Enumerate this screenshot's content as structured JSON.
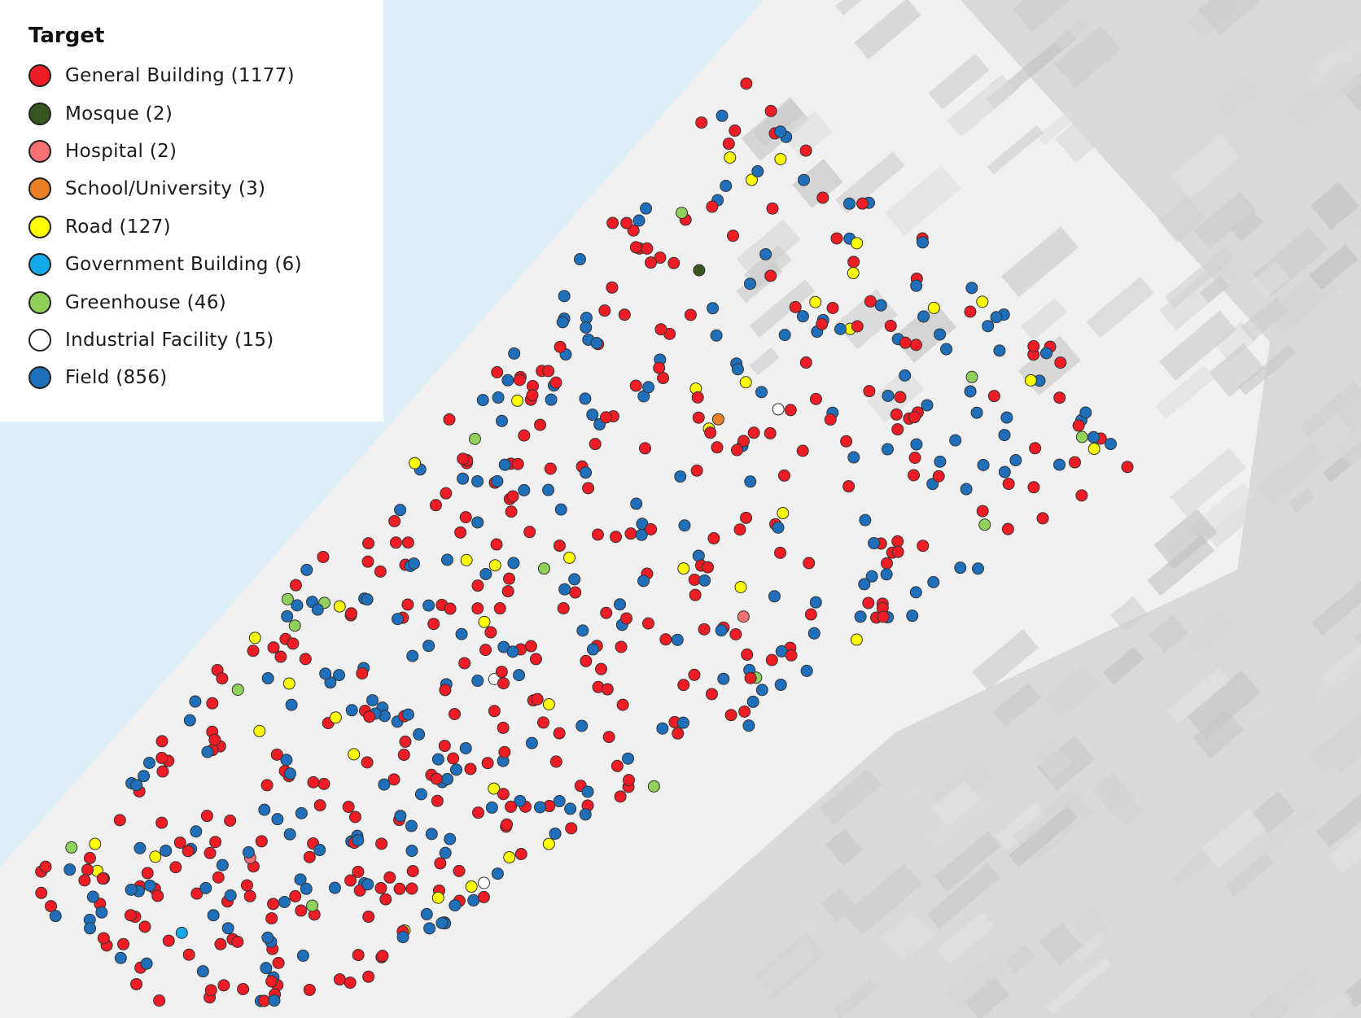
{
  "legend": {
    "title": "Target",
    "items": [
      {
        "label": "General Building (1177)",
        "color": "#ee1c25"
      },
      {
        "label": "Mosque (2)",
        "color": "#38561f"
      },
      {
        "label": "Hospital (2)",
        "color": "#f47072"
      },
      {
        "label": "School/University (3)",
        "color": "#e97f27"
      },
      {
        "label": "Road (127)",
        "color": "#ffff00"
      },
      {
        "label": "Government Building (6)",
        "color": "#13a8e9"
      },
      {
        "label": "Greenhouse (46)",
        "color": "#8fd15a"
      },
      {
        "label": "Industrial Facility (15)",
        "color": "#ffffff"
      },
      {
        "label": "Field (856)",
        "color": "#1f6fba"
      }
    ]
  }
}
